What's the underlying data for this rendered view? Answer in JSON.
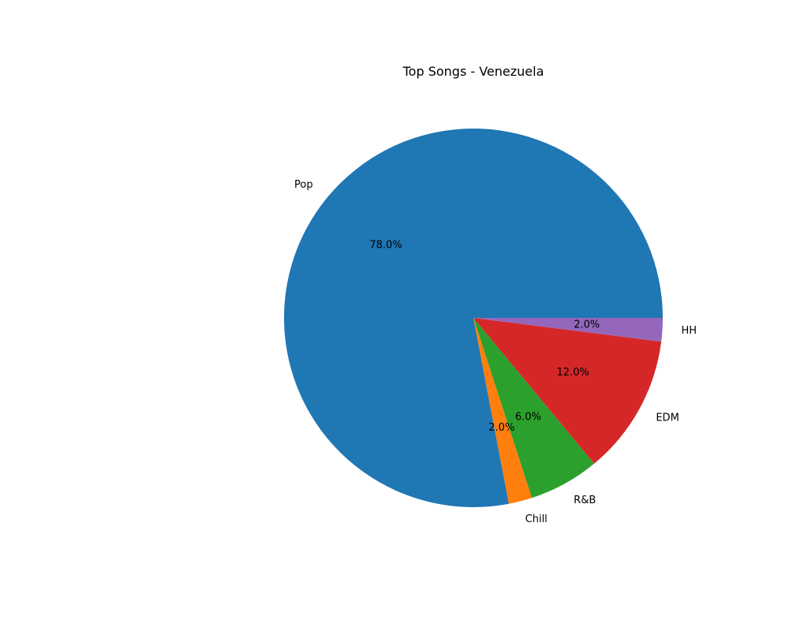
{
  "chart_data": {
    "type": "pie",
    "title": "Top Songs - Venezuela",
    "slices": [
      {
        "label": "Pop",
        "value": 78.0,
        "pct_label": "78.0%",
        "color": "#1f77b4"
      },
      {
        "label": "Chill",
        "value": 2.0,
        "pct_label": "2.0%",
        "color": "#ff7f0e"
      },
      {
        "label": "R&B",
        "value": 6.0,
        "pct_label": "6.0%",
        "color": "#2ca02c"
      },
      {
        "label": "EDM",
        "value": 12.0,
        "pct_label": "12.0%",
        "color": "#d62728"
      },
      {
        "label": "HH",
        "value": 2.0,
        "pct_label": "2.0%",
        "color": "#9467bd"
      }
    ],
    "start_angle_deg": 0,
    "direction": "counterclockwise",
    "legend": false
  }
}
